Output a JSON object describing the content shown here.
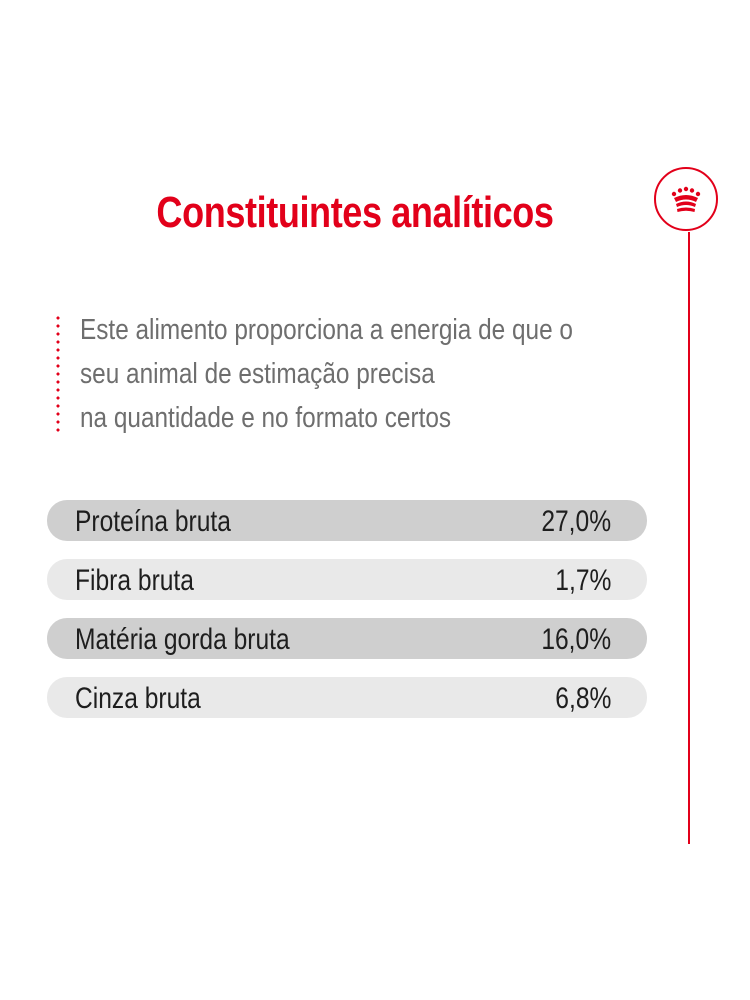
{
  "title": "Constituintes analíticos",
  "brand_icon": "royal-crown-icon",
  "colors": {
    "accent": "#e2001a",
    "row_dark": "#cfcfcf",
    "row_light": "#e9e9e9",
    "text": "#1e1e1e",
    "body_text": "#6e6e6e"
  },
  "intro": {
    "lines": [
      "Este alimento proporciona a energia de que o",
      "seu animal de estimação precisa",
      "na quantidade e no formato certos"
    ]
  },
  "constituents": [
    {
      "label": "Proteína bruta",
      "value": "27,0%"
    },
    {
      "label": "Fibra bruta",
      "value": "1,7%"
    },
    {
      "label": "Matéria gorda bruta",
      "value": "16,0%"
    },
    {
      "label": "Cinza bruta",
      "value": "6,8%"
    }
  ]
}
